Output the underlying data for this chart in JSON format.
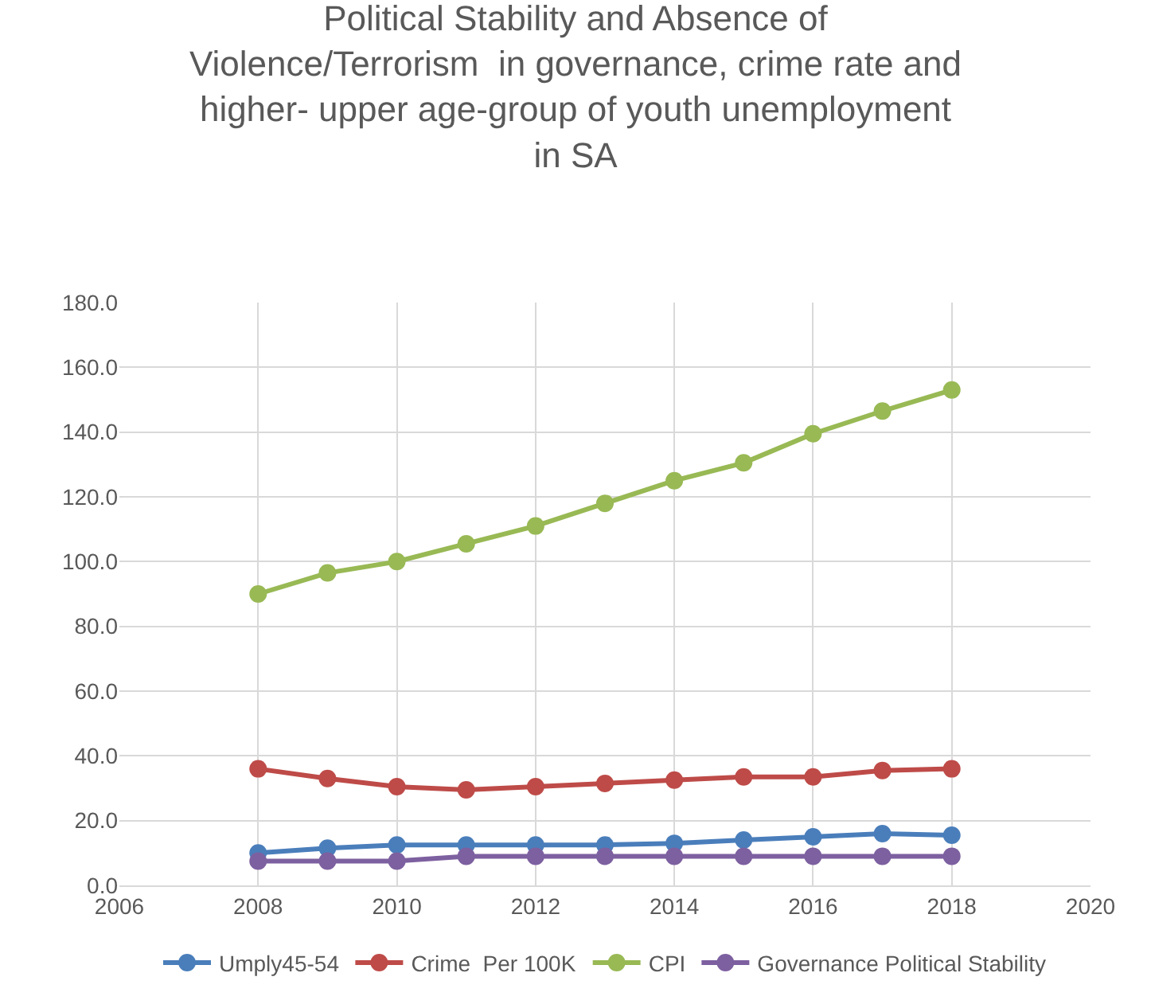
{
  "chart_data": {
    "type": "line",
    "title": "Political Stability and Absence of\nViolence/Terrorism  in governance, crime rate and\nhigher- upper age-group of youth unemployment\nin SA",
    "x": [
      2008,
      2009,
      2010,
      2011,
      2012,
      2013,
      2014,
      2015,
      2016,
      2017,
      2018
    ],
    "series": [
      {
        "name": "Umply45-54",
        "color": "#4a7ebb",
        "values": [
          10,
          11.5,
          12.5,
          12.5,
          12.5,
          12.5,
          13,
          14,
          15,
          16,
          15.5
        ]
      },
      {
        "name": "Crime  Per 100K",
        "color": "#be4b48",
        "values": [
          36,
          33,
          30.5,
          29.5,
          30.5,
          31.5,
          32.5,
          33.5,
          33.5,
          35.5,
          36
        ]
      },
      {
        "name": "CPI",
        "color": "#98b954",
        "values": [
          90,
          96.5,
          100,
          105.5,
          111,
          118,
          125,
          130.5,
          139.5,
          146.5,
          153
        ]
      },
      {
        "name": "Governance Political Stability",
        "color": "#7d60a0",
        "values": [
          7.5,
          7.5,
          7.5,
          9,
          9,
          9,
          9,
          9,
          9,
          9,
          9
        ]
      }
    ],
    "xlim": [
      2006,
      2020
    ],
    "xticks": [
      2006,
      2008,
      2010,
      2012,
      2014,
      2016,
      2018,
      2020
    ],
    "ylim": [
      0,
      180
    ],
    "yticks": [
      {
        "value": 0,
        "label": "0.0"
      },
      {
        "value": 20,
        "label": "20.0"
      },
      {
        "value": 40,
        "label": "40.0"
      },
      {
        "value": 60,
        "label": "60.0"
      },
      {
        "value": 80,
        "label": "80.0"
      },
      {
        "value": 100,
        "label": "100.0"
      },
      {
        "value": 120,
        "label": "120.0"
      },
      {
        "value": 140,
        "label": "140.0"
      },
      {
        "value": 160,
        "label": "160.0"
      },
      {
        "value": 180,
        "label": "180.0"
      }
    ],
    "grid": true,
    "legend": "bottom",
    "marker": "circle",
    "line_style": "solid"
  }
}
